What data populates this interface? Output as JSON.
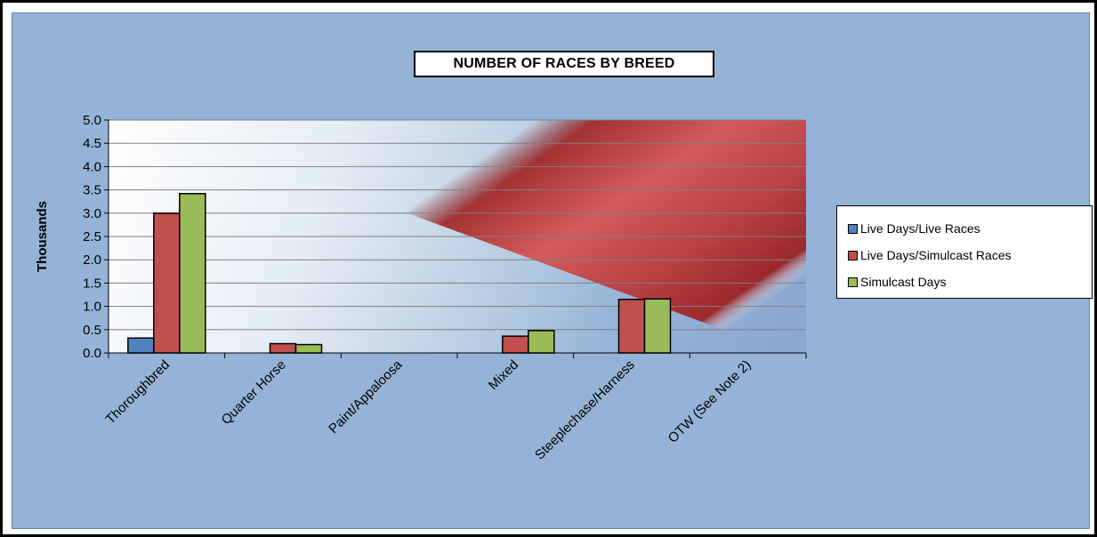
{
  "chart_data": {
    "type": "bar",
    "title": "NUMBER OF RACES BY BREED",
    "xlabel": "",
    "ylabel": "Thousands",
    "ylim": [
      0,
      5
    ],
    "yticks": [
      "0.0",
      "0.5",
      "1.0",
      "1.5",
      "2.0",
      "2.5",
      "3.0",
      "3.5",
      "4.0",
      "4.5",
      "5.0"
    ],
    "grid": true,
    "legend_position": "right",
    "categories": [
      "Thoroughbred",
      "Quarter Horse",
      "Paint/Appaloosa",
      "Mixed",
      "Steeplechase/Harness",
      "OTW (See Note 2)"
    ],
    "series": [
      {
        "name": "Live Days/Live Races",
        "color": "#4f81bd",
        "values": [
          0.32,
          0,
          0,
          0,
          0,
          0
        ]
      },
      {
        "name": "Live Days/Simulcast Races",
        "color": "#c0504d",
        "values": [
          3.0,
          0.2,
          0,
          0.36,
          1.15,
          0
        ]
      },
      {
        "name": "Simulcast Days",
        "color": "#9bbb59",
        "values": [
          3.42,
          0.18,
          0,
          0.48,
          1.16,
          0
        ]
      }
    ]
  }
}
